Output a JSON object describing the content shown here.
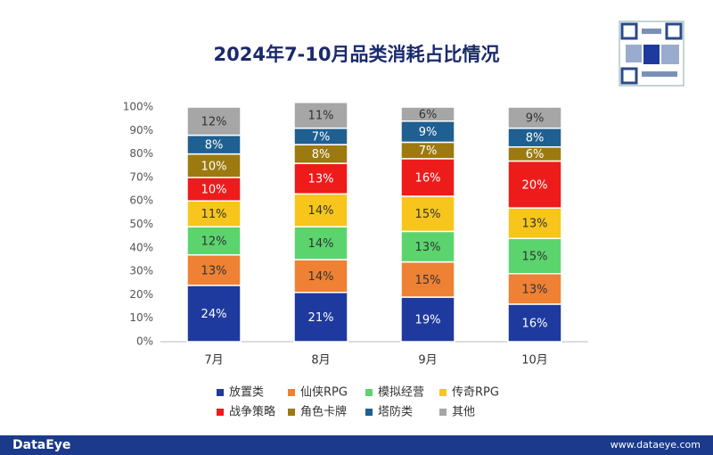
{
  "chart_data": {
    "type": "stacked_bar",
    "title": "2024年7-10月品类消耗占比情况",
    "categories": [
      "7月",
      "8月",
      "9月",
      "10月"
    ],
    "series": [
      {
        "name": "放置类",
        "color": "#1f3a9e",
        "values": [
          24,
          21,
          19,
          16
        ],
        "value_labels": [
          "24%",
          "21%",
          "19%",
          "16%"
        ]
      },
      {
        "name": "仙侠RPG",
        "color": "#ee8133",
        "values": [
          13,
          14,
          15,
          13
        ],
        "value_labels": [
          "13%",
          "14%",
          "15%",
          "13%"
        ]
      },
      {
        "name": "模拟经营",
        "color": "#5bd46e",
        "values": [
          12,
          14,
          13,
          15
        ],
        "value_labels": [
          "12%",
          "14%",
          "13%",
          "15%"
        ]
      },
      {
        "name": "传奇RPG",
        "color": "#f7c51c",
        "values": [
          11,
          14,
          15,
          13
        ],
        "value_labels": [
          "11%",
          "14%",
          "15%",
          "13%"
        ]
      },
      {
        "name": "战争策略",
        "color": "#ee1b1b",
        "values": [
          10,
          13,
          16,
          20
        ],
        "value_labels": [
          "10%",
          "13%",
          "16%",
          "20%"
        ]
      },
      {
        "name": "角色卡牌",
        "color": "#9c7a0f",
        "values": [
          10,
          8,
          7,
          6
        ],
        "value_labels": [
          "10%",
          "8%",
          "7%",
          "6%"
        ]
      },
      {
        "name": "塔防类",
        "color": "#1f5f91",
        "values": [
          8,
          7,
          9,
          8
        ],
        "value_labels": [
          "8%",
          "7%",
          "9%",
          "8%"
        ]
      },
      {
        "name": "其他",
        "color": "#a6a6a6",
        "values": [
          12,
          11,
          6,
          9
        ],
        "value_labels": [
          "12%",
          "11%",
          "6%",
          "9%"
        ]
      }
    ],
    "ylim": [
      0,
      100
    ],
    "yticks": [
      {
        "value": 0,
        "label": "0%"
      },
      {
        "value": 10,
        "label": "10%"
      },
      {
        "value": 20,
        "label": "20%"
      },
      {
        "value": 30,
        "label": "30%"
      },
      {
        "value": 40,
        "label": "40%"
      },
      {
        "value": 50,
        "label": "50%"
      },
      {
        "value": 60,
        "label": "60%"
      },
      {
        "value": 70,
        "label": "70%"
      },
      {
        "value": 80,
        "label": "80%"
      },
      {
        "value": 90,
        "label": "90%"
      },
      {
        "value": 100,
        "label": "100%"
      }
    ],
    "legend": "bottom"
  },
  "footer": {
    "brand": "DataEye",
    "website": "www.dataeye.com"
  }
}
